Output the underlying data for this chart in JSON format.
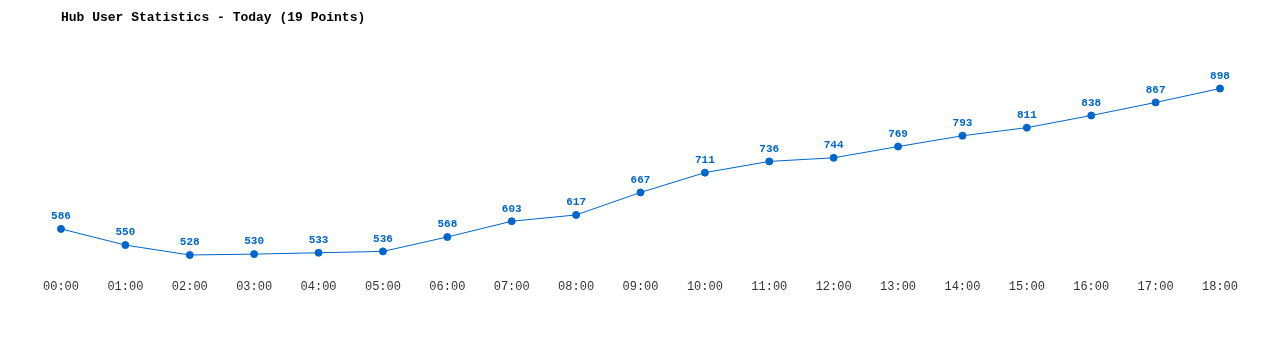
{
  "chart_data": {
    "type": "line",
    "title": "Hub User Statistics - Today (19 Points)",
    "categories": [
      "00:00",
      "01:00",
      "02:00",
      "03:00",
      "04:00",
      "05:00",
      "06:00",
      "07:00",
      "08:00",
      "09:00",
      "10:00",
      "11:00",
      "12:00",
      "13:00",
      "14:00",
      "15:00",
      "16:00",
      "17:00",
      "18:00"
    ],
    "series": [
      {
        "color": "#0066cc",
        "values": [
          586,
          550,
          528,
          530,
          533,
          536,
          568,
          603,
          617,
          667,
          711,
          736,
          744,
          769,
          793,
          811,
          838,
          867,
          898
        ]
      }
    ],
    "tick_labels": "x",
    "grid": false,
    "legend": false,
    "marker": "circle",
    "line_style": "solid",
    "data_labels": true
  }
}
